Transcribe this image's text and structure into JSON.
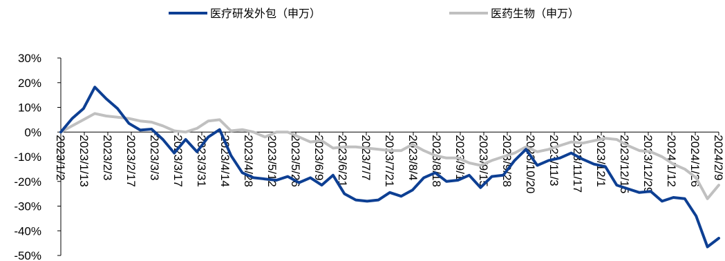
{
  "chart_data": {
    "type": "line",
    "title": "",
    "xlabel": "",
    "ylabel": "",
    "ylim": [
      -50,
      30
    ],
    "y_ticks": [
      "30%",
      "20%",
      "10%",
      "0%",
      "-10%",
      "-20%",
      "-30%",
      "-40%",
      "-50%"
    ],
    "y_tick_values": [
      30,
      20,
      10,
      0,
      -10,
      -20,
      -30,
      -40,
      -50
    ],
    "x_tick_labels": [
      "2023/1/2",
      "2023/1/13",
      "2023/2/3",
      "2023/2/17",
      "2023/3/3",
      "2023/3/17",
      "2023/3/31",
      "2023/4/14",
      "2023/4/28",
      "2023/5/12",
      "2023/5/26",
      "2023/6/9",
      "2023/6/21",
      "2023/7/7",
      "2023/7/21",
      "2023/8/4",
      "2023/8/18",
      "2023/9/1",
      "2023/9/15",
      "2023/9/28",
      "2023/10/20",
      "2023/11/3",
      "2023/11/17",
      "2023/12/1",
      "2023/12/15",
      "2023/12/29",
      "2024/1/12",
      "2024/1/26",
      "2024/2/9"
    ],
    "grid": false,
    "legend_position": "top",
    "series": [
      {
        "name": "医疗研发外包（申万）",
        "color": "#0d3f93",
        "values": [
          0,
          5.5,
          9.5,
          18.2,
          13.5,
          9.5,
          3.5,
          0.8,
          1.2,
          -3,
          -8.5,
          -3,
          -8,
          -2,
          1,
          -9.5,
          -16.5,
          -18.5,
          -19,
          -19.5,
          -18,
          -20.5,
          -18.5,
          -21.5,
          -17.5,
          -25,
          -27.5,
          -28,
          -27.5,
          -24.5,
          -26,
          -23.5,
          -18.5,
          -16.5,
          -20,
          -19.5,
          -17.5,
          -22.5,
          -18,
          -17.5,
          -11.5,
          -7,
          -13.5,
          -11.5,
          -10.5,
          -8.5,
          -11,
          -13,
          -14,
          -21.5,
          -23,
          -24.5,
          -24,
          -28,
          -26.5,
          -27,
          -34,
          -46.5,
          -43
        ]
      },
      {
        "name": "医药生物（申万）",
        "color": "#c0c0c0",
        "values": [
          0,
          2.5,
          5,
          7.5,
          6.5,
          6,
          5.5,
          4.5,
          4,
          2.5,
          0.5,
          0,
          1.5,
          4.5,
          5,
          0.5,
          1,
          0,
          -2,
          0,
          0,
          -2,
          -4,
          -3.5,
          -6.5,
          -6,
          -6,
          -6.5,
          -7,
          -7.5,
          -7.5,
          -5,
          -7.5,
          -9.5,
          -10.5,
          -10.5,
          -12.5,
          -13.5,
          -11.5,
          -10,
          -8.5,
          -6,
          -8,
          -7,
          -5.5,
          -4,
          -4.5,
          -3.5,
          -2.5,
          -3,
          -5.5,
          -7.5,
          -8,
          -10,
          -13,
          -15,
          -18.5,
          -27,
          -21.5
        ]
      }
    ]
  }
}
